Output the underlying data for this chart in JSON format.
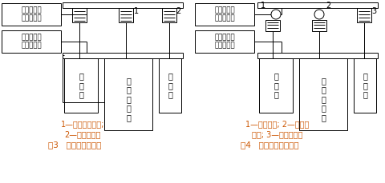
{
  "fig_width": 4.81,
  "fig_height": 2.29,
  "dpi": 100,
  "bg_color": "#ffffff",
  "lc": "#000000",
  "orange": "#cc5500",
  "supply_label": "接组合式空\n调器送风管",
  "return_label": "接组合式空\n调器回风管",
  "wan_ji_qu": "万\n级\n区",
  "wan_ji_qu2": "万\n级\n区",
  "ju_bu_100": "局\n部\n百\n级\n区",
  "fig3_leg1": "1—风机过滤单元;",
  "fig3_leg2": "2—高效送风口",
  "fig3_cap": "图3   循环风处理简图",
  "fig4_leg1": "1—循环风机; 2—高效过",
  "fig4_leg2": "滤器; 3—高效送风口",
  "fig4_cap": "图4   循环风机加压简图"
}
